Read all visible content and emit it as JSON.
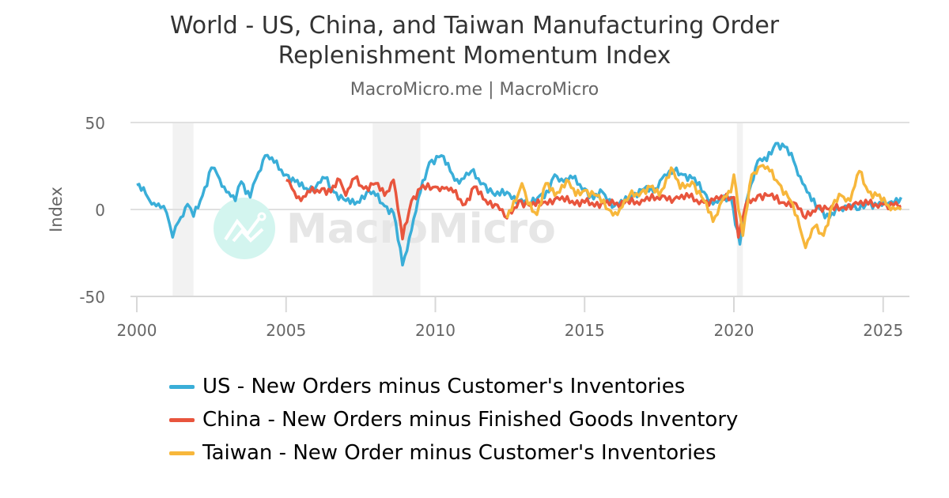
{
  "header": {
    "title_line1": "World - US, China, and Taiwan Manufacturing Order",
    "title_line2": "Replenishment Momentum Index",
    "subtitle": "MacroMicro.me | MacroMicro"
  },
  "watermark": {
    "text": "MacroMicro",
    "icon": "chart-line-logo-icon"
  },
  "colors": {
    "us": "#3aaed8",
    "china": "#e8553d",
    "taiwan": "#f7b73b",
    "grid": "#e0e0e0",
    "recession": "#f2f2f2"
  },
  "chart_data": {
    "type": "line",
    "title": "World - US, China, and Taiwan Manufacturing Order Replenishment Momentum Index",
    "subtitle": "MacroMicro.me | MacroMicro",
    "xlabel": "",
    "ylabel": "Index",
    "xlim": [
      2000,
      2025.9
    ],
    "ylim": [
      -50,
      50
    ],
    "x_ticks": [
      "2000",
      "2005",
      "2010",
      "2015",
      "2020",
      "2025"
    ],
    "y_ticks": [
      "50",
      "0",
      "-50"
    ],
    "grid": true,
    "legend_position": "bottom",
    "recession_bands": [
      [
        2001.2,
        2001.9
      ],
      [
        2007.9,
        2009.5
      ],
      [
        2020.1,
        2020.3
      ]
    ],
    "series": [
      {
        "name": "US - New Orders minus Customer's Inventories",
        "color": "#3aaed8",
        "points": [
          [
            2000.0,
            14
          ],
          [
            2000.3,
            9
          ],
          [
            2000.5,
            3
          ],
          [
            2000.8,
            1
          ],
          [
            2001.0,
            -2
          ],
          [
            2001.2,
            -16
          ],
          [
            2001.4,
            -7
          ],
          [
            2001.7,
            3
          ],
          [
            2001.9,
            -4
          ],
          [
            2002.2,
            8
          ],
          [
            2002.5,
            24
          ],
          [
            2002.7,
            20
          ],
          [
            2003.0,
            10
          ],
          [
            2003.3,
            5
          ],
          [
            2003.5,
            16
          ],
          [
            2003.8,
            7
          ],
          [
            2004.0,
            18
          ],
          [
            2004.3,
            31
          ],
          [
            2004.6,
            27
          ],
          [
            2005.0,
            20
          ],
          [
            2005.3,
            16
          ],
          [
            2005.6,
            12
          ],
          [
            2006.0,
            13
          ],
          [
            2006.3,
            18
          ],
          [
            2006.6,
            10
          ],
          [
            2007.0,
            5
          ],
          [
            2007.3,
            3
          ],
          [
            2007.7,
            10
          ],
          [
            2008.0,
            8
          ],
          [
            2008.3,
            2
          ],
          [
            2008.6,
            -2
          ],
          [
            2008.9,
            -32
          ],
          [
            2009.2,
            -12
          ],
          [
            2009.5,
            10
          ],
          [
            2009.8,
            27
          ],
          [
            2010.2,
            31
          ],
          [
            2010.5,
            22
          ],
          [
            2010.8,
            15
          ],
          [
            2011.2,
            22
          ],
          [
            2011.6,
            15
          ],
          [
            2012.0,
            8
          ],
          [
            2012.4,
            10
          ],
          [
            2012.8,
            5
          ],
          [
            2013.2,
            3
          ],
          [
            2013.5,
            8
          ],
          [
            2013.8,
            10
          ],
          [
            2014.0,
            20
          ],
          [
            2014.3,
            16
          ],
          [
            2014.6,
            18
          ],
          [
            2015.0,
            12
          ],
          [
            2015.3,
            6
          ],
          [
            2015.6,
            10
          ],
          [
            2016.0,
            2
          ],
          [
            2016.3,
            4
          ],
          [
            2016.6,
            8
          ],
          [
            2017.0,
            12
          ],
          [
            2017.3,
            10
          ],
          [
            2017.6,
            18
          ],
          [
            2018.0,
            22
          ],
          [
            2018.3,
            20
          ],
          [
            2018.6,
            18
          ],
          [
            2019.0,
            10
          ],
          [
            2019.3,
            3
          ],
          [
            2019.6,
            5
          ],
          [
            2019.9,
            7
          ],
          [
            2020.2,
            -20
          ],
          [
            2020.5,
            10
          ],
          [
            2020.8,
            28
          ],
          [
            2021.1,
            28
          ],
          [
            2021.4,
            38
          ],
          [
            2021.7,
            36
          ],
          [
            2022.0,
            28
          ],
          [
            2022.3,
            15
          ],
          [
            2022.6,
            5
          ],
          [
            2022.9,
            0
          ],
          [
            2023.2,
            -5
          ],
          [
            2023.5,
            0
          ],
          [
            2023.8,
            2
          ],
          [
            2024.2,
            0
          ],
          [
            2024.5,
            4
          ],
          [
            2024.8,
            2
          ],
          [
            2025.2,
            4
          ],
          [
            2025.6,
            7
          ]
        ]
      },
      {
        "name": "China - New Orders minus Finished Goods Inventory",
        "color": "#e8553d",
        "points": [
          [
            2005.0,
            17
          ],
          [
            2005.2,
            12
          ],
          [
            2005.5,
            5
          ],
          [
            2005.8,
            10
          ],
          [
            2006.2,
            12
          ],
          [
            2006.5,
            10
          ],
          [
            2006.8,
            17
          ],
          [
            2007.0,
            8
          ],
          [
            2007.3,
            18
          ],
          [
            2007.6,
            12
          ],
          [
            2008.0,
            15
          ],
          [
            2008.3,
            8
          ],
          [
            2008.6,
            17
          ],
          [
            2008.9,
            -17
          ],
          [
            2009.2,
            5
          ],
          [
            2009.5,
            12
          ],
          [
            2010.0,
            13
          ],
          [
            2010.3,
            12
          ],
          [
            2010.6,
            10
          ],
          [
            2011.0,
            3
          ],
          [
            2011.3,
            13
          ],
          [
            2011.6,
            6
          ],
          [
            2012.0,
            3
          ],
          [
            2012.4,
            -5
          ],
          [
            2012.8,
            5
          ],
          [
            2013.2,
            2
          ],
          [
            2013.6,
            4
          ],
          [
            2014.0,
            6
          ],
          [
            2015.0,
            4
          ],
          [
            2016.0,
            3
          ],
          [
            2017.0,
            5
          ],
          [
            2017.6,
            8
          ],
          [
            2018.0,
            6
          ],
          [
            2018.5,
            7
          ],
          [
            2019.0,
            4
          ],
          [
            2019.5,
            6
          ],
          [
            2020.0,
            7
          ],
          [
            2020.15,
            -16
          ],
          [
            2020.4,
            3
          ],
          [
            2020.8,
            8
          ],
          [
            2021.2,
            8
          ],
          [
            2021.6,
            4
          ],
          [
            2022.0,
            4
          ],
          [
            2022.4,
            -5
          ],
          [
            2022.8,
            2
          ],
          [
            2023.2,
            0
          ],
          [
            2023.6,
            1
          ],
          [
            2024.0,
            3
          ],
          [
            2024.5,
            3
          ],
          [
            2025.0,
            3
          ],
          [
            2025.6,
            2
          ]
        ]
      },
      {
        "name": "Taiwan - New Order minus Customer's Inventories",
        "color": "#f7b73b",
        "points": [
          [
            2012.4,
            -5
          ],
          [
            2012.7,
            5
          ],
          [
            2012.9,
            15
          ],
          [
            2013.1,
            3
          ],
          [
            2013.4,
            -3
          ],
          [
            2013.7,
            15
          ],
          [
            2014.0,
            8
          ],
          [
            2014.4,
            17
          ],
          [
            2014.7,
            8
          ],
          [
            2015.0,
            11
          ],
          [
            2015.4,
            8
          ],
          [
            2015.8,
            0
          ],
          [
            2016.1,
            -3
          ],
          [
            2016.5,
            8
          ],
          [
            2016.9,
            10
          ],
          [
            2017.2,
            13
          ],
          [
            2017.5,
            8
          ],
          [
            2017.9,
            24
          ],
          [
            2018.2,
            12
          ],
          [
            2018.6,
            16
          ],
          [
            2019.0,
            5
          ],
          [
            2019.3,
            -7
          ],
          [
            2019.6,
            5
          ],
          [
            2019.9,
            10
          ],
          [
            2020.0,
            20
          ],
          [
            2020.3,
            -15
          ],
          [
            2020.6,
            20
          ],
          [
            2020.9,
            25
          ],
          [
            2021.2,
            22
          ],
          [
            2021.5,
            15
          ],
          [
            2021.9,
            5
          ],
          [
            2022.2,
            -10
          ],
          [
            2022.4,
            -22
          ],
          [
            2022.7,
            -10
          ],
          [
            2023.0,
            -15
          ],
          [
            2023.3,
            2
          ],
          [
            2023.6,
            8
          ],
          [
            2023.9,
            5
          ],
          [
            2024.2,
            22
          ],
          [
            2024.5,
            10
          ],
          [
            2024.8,
            8
          ],
          [
            2025.1,
            3
          ],
          [
            2025.4,
            0
          ],
          [
            2025.6,
            0
          ]
        ]
      }
    ]
  }
}
